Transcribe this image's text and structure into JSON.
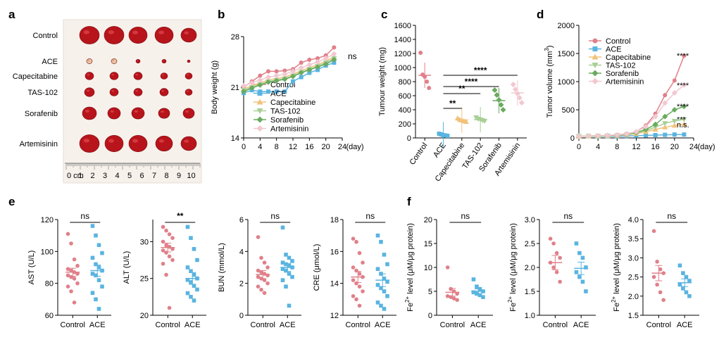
{
  "panel_labels": {
    "a": "a",
    "b": "b",
    "c": "c",
    "d": "d",
    "e": "e",
    "f": "f"
  },
  "colors": {
    "Control": "#e0808a",
    "ACE": "#5ab4e0",
    "Capecitabine": "#f2c27a",
    "TAS-102": "#a8cf96",
    "Sorafenib": "#6aaa5e",
    "Artemisinin": "#f2c8d0"
  },
  "groups": [
    "Control",
    "ACE",
    "Capecitabine",
    "TAS-102",
    "Sorafenib",
    "Artemisinin"
  ],
  "photo": {
    "rows": [
      "Control",
      "ACE",
      "Capecitabine",
      "TAS-102",
      "Sorafenib",
      "Artemisinin"
    ],
    "ruler_unit": "0 cm",
    "ruler_numbers": [
      "1",
      "2",
      "3",
      "4",
      "5",
      "6",
      "7",
      "8",
      "9",
      "10"
    ]
  },
  "chart_data": [
    {
      "id": "b",
      "type": "line",
      "title": "",
      "xlabel": "(day)",
      "ylabel": "Body weight (g)",
      "x": [
        0,
        2,
        4,
        6,
        8,
        10,
        12,
        14,
        16,
        18,
        20,
        22
      ],
      "xticks": [
        "0",
        "4",
        "8",
        "12",
        "16",
        "20",
        "24"
      ],
      "yticks": [
        "14",
        "21",
        "28"
      ],
      "xlim": [
        0,
        24
      ],
      "ylim": [
        14,
        28
      ],
      "annotation": "ns",
      "series": [
        {
          "name": "Control",
          "values": [
            21,
            21.8,
            22.6,
            23.2,
            23.2,
            23.3,
            23.5,
            24.4,
            24.8,
            25,
            25.4,
            26.5
          ]
        },
        {
          "name": "ACE",
          "values": [
            20.2,
            20.6,
            20.4,
            20.4,
            20.4,
            20.4,
            21.8,
            22.4,
            23,
            23.4,
            24,
            24.4
          ]
        },
        {
          "name": "Capecitabine",
          "values": [
            20.8,
            21.2,
            21.6,
            22,
            22.2,
            22.4,
            22.8,
            23.3,
            23.7,
            24.1,
            24.6,
            25.2
          ]
        },
        {
          "name": "TAS-102",
          "values": [
            20.6,
            21,
            21.4,
            21.8,
            22,
            22.2,
            22.6,
            23.1,
            23.5,
            23.9,
            24.4,
            25
          ]
        },
        {
          "name": "Sorafenib",
          "values": [
            20.4,
            20.9,
            21.3,
            21.7,
            21.9,
            22.1,
            22.5,
            23,
            23.4,
            23.8,
            24.2,
            24.8
          ]
        },
        {
          "name": "Artemisinin",
          "values": [
            21.2,
            21.6,
            22,
            22.4,
            22.6,
            22.8,
            23.2,
            23.7,
            24.1,
            24.5,
            25,
            25.6
          ]
        }
      ]
    },
    {
      "id": "c",
      "type": "scatter",
      "title": "",
      "ylabel": "Tumour weight (mg)",
      "categories": [
        "Control",
        "ACE",
        "Capecitabine",
        "TAS-102",
        "Sorafenib",
        "Artemisinin"
      ],
      "yticks": [
        "0",
        "200",
        "400",
        "600",
        "800",
        "1000",
        "1200",
        "1400",
        "1600"
      ],
      "ylim": [
        0,
        1600
      ],
      "series": [
        {
          "name": "Control",
          "values": [
            1210,
            900,
            870,
            800,
            710
          ],
          "mean": 890
        },
        {
          "name": "ACE",
          "values": [
            60,
            50,
            40,
            35,
            30
          ],
          "mean": 45
        },
        {
          "name": "Capecitabine",
          "values": [
            280,
            260,
            250,
            240,
            230
          ],
          "mean": 255
        },
        {
          "name": "TAS-102",
          "values": [
            290,
            270,
            260,
            250,
            240
          ],
          "mean": 260
        },
        {
          "name": "Sorafenib",
          "values": [
            680,
            610,
            540,
            470,
            400
          ],
          "mean": 530
        },
        {
          "name": "Artemisinin",
          "values": [
            760,
            690,
            630,
            570,
            500
          ],
          "mean": 640
        }
      ],
      "significance": [
        "**",
        "**",
        "****",
        "****"
      ]
    },
    {
      "id": "d",
      "type": "line",
      "title": "",
      "xlabel": "(day)",
      "ylabel": "Tumor volume (mm",
      "ylabel_sup": "3",
      "ylabel_end": ")",
      "x": [
        0,
        2,
        4,
        6,
        8,
        10,
        12,
        14,
        16,
        18,
        20,
        22
      ],
      "xticks": [
        "0",
        "4",
        "8",
        "12",
        "16",
        "20",
        "24"
      ],
      "yticks": [
        "0",
        "500",
        "1000",
        "1500",
        "2000"
      ],
      "xlim": [
        0,
        24
      ],
      "ylim": [
        0,
        2000
      ],
      "series": [
        {
          "name": "Control",
          "values": [
            30,
            35,
            40,
            45,
            55,
            75,
            110,
            220,
            430,
            760,
            1020,
            1460
          ],
          "label": "****"
        },
        {
          "name": "ACE",
          "values": [
            30,
            30,
            30,
            30,
            30,
            35,
            40,
            45,
            50,
            55,
            60,
            60
          ],
          "label": ""
        },
        {
          "name": "Capecitabine",
          "values": [
            30,
            32,
            35,
            38,
            42,
            55,
            75,
            110,
            150,
            190,
            220,
            240
          ],
          "label": "n.s."
        },
        {
          "name": "TAS-102",
          "values": [
            30,
            33,
            36,
            40,
            45,
            60,
            85,
            130,
            190,
            260,
            300,
            330
          ],
          "label": "***"
        },
        {
          "name": "Sorafenib",
          "values": [
            30,
            34,
            38,
            42,
            48,
            65,
            95,
            150,
            240,
            380,
            500,
            560
          ],
          "label": "****"
        },
        {
          "name": "Artemisinin",
          "values": [
            30,
            35,
            40,
            45,
            52,
            70,
            110,
            200,
            380,
            620,
            800,
            940
          ],
          "label": "****"
        }
      ]
    },
    {
      "id": "e1",
      "type": "scatter",
      "ylabel": "AST (U/L)",
      "categories": [
        "Control",
        "ACE"
      ],
      "yticks": [
        "60",
        "80",
        "100",
        "120"
      ],
      "ylim": [
        60,
        120
      ],
      "annotation": "ns",
      "series": [
        {
          "name": "Control",
          "values": [
            111,
            105,
            95,
            91,
            89,
            88,
            87,
            86,
            85,
            84,
            83,
            80,
            78,
            75,
            68
          ],
          "mean": 87,
          "sem": 2.5
        },
        {
          "name": "ACE",
          "values": [
            116,
            110,
            104,
            99,
            96,
            92,
            90,
            88,
            86,
            85,
            82,
            78,
            74,
            70,
            64
          ],
          "mean": 88,
          "sem": 3.5
        }
      ]
    },
    {
      "id": "e2",
      "type": "scatter",
      "ylabel": "ALT (U/L)",
      "categories": [
        "Control",
        "ACE"
      ],
      "yticks": [
        "20",
        "25",
        "30"
      ],
      "ylim": [
        20,
        33
      ],
      "annotation": "**",
      "series": [
        {
          "name": "Control",
          "values": [
            32,
            31.5,
            31,
            30.5,
            30,
            29.5,
            29.3,
            29,
            28.8,
            28.5,
            28,
            27.5,
            27,
            25.5,
            21
          ],
          "mean": 29.2,
          "sem": 0.6
        },
        {
          "name": "ACE",
          "values": [
            32,
            30.5,
            29,
            27.5,
            26.5,
            26,
            25.5,
            25,
            24.8,
            24.5,
            24,
            23.5,
            23,
            22.5,
            22
          ],
          "mean": 25,
          "sem": 0.8
        }
      ]
    },
    {
      "id": "e3",
      "type": "scatter",
      "ylabel": "BUN (mmol/L)",
      "categories": [
        "Control",
        "ACE"
      ],
      "yticks": [
        "0",
        "2",
        "4",
        "6"
      ],
      "ylim": [
        0,
        6
      ],
      "annotation": "ns",
      "series": [
        {
          "name": "Control",
          "values": [
            4.9,
            3.6,
            3.3,
            3.0,
            2.8,
            2.7,
            2.6,
            2.5,
            2.4,
            2.3,
            2.2,
            2.0,
            1.8,
            1.6,
            1.4
          ],
          "mean": 2.55,
          "sem": 0.25
        },
        {
          "name": "ACE",
          "values": [
            5.5,
            3.8,
            3.6,
            3.4,
            3.3,
            3.2,
            3.1,
            3.0,
            2.9,
            2.8,
            2.6,
            2.4,
            2.2,
            1.8,
            0.6
          ],
          "mean": 3.0,
          "sem": 0.25
        }
      ]
    },
    {
      "id": "e4",
      "type": "scatter",
      "ylabel": "CRE (μmol/L)",
      "categories": [
        "Control",
        "ACE"
      ],
      "yticks": [
        "12",
        "14",
        "16",
        "18"
      ],
      "ylim": [
        12,
        18
      ],
      "annotation": "ns",
      "series": [
        {
          "name": "Control",
          "values": [
            16.8,
            16.6,
            15.9,
            15.3,
            15.0,
            14.8,
            14.6,
            14.4,
            14.2,
            14.0,
            13.8,
            13.5,
            13.2,
            13.0,
            12.6
          ],
          "mean": 14.4,
          "sem": 0.35
        },
        {
          "name": "ACE",
          "values": [
            17.0,
            16.6,
            15.8,
            15.2,
            14.9,
            14.6,
            14.3,
            14.1,
            13.9,
            13.7,
            13.5,
            13.2,
            12.8,
            12.6,
            12.4
          ],
          "mean": 14.2,
          "sem": 0.4
        }
      ]
    },
    {
      "id": "f1",
      "type": "scatter",
      "ylabel": "Fe",
      "ylabel_sup": "2+",
      "ylabel_end": " level (μM/μg protein)",
      "categories": [
        "Control",
        "ACE"
      ],
      "yticks": [
        "0",
        "5",
        "10",
        "15",
        "20"
      ],
      "ylim": [
        0,
        20
      ],
      "annotation": "ns",
      "series": [
        {
          "name": "Control",
          "values": [
            10,
            5.5,
            5,
            4.5,
            4,
            3.8,
            3.5,
            3.2
          ],
          "mean": 4.8,
          "sem": 0.8
        },
        {
          "name": "ACE",
          "values": [
            7.5,
            6,
            5.5,
            5,
            4.8,
            4.5,
            4.2,
            3.8
          ],
          "mean": 5,
          "sem": 0.5
        }
      ]
    },
    {
      "id": "f2",
      "type": "scatter",
      "ylabel": "Fe",
      "ylabel_sup": "2+",
      "ylabel_end": " level (μM/μg protein)",
      "categories": [
        "Control",
        "ACE"
      ],
      "yticks": [
        "1.0",
        "1.5",
        "2.0",
        "2.5",
        "3.0"
      ],
      "ylim": [
        1.0,
        3.0
      ],
      "annotation": "ns",
      "series": [
        {
          "name": "Control",
          "values": [
            2.6,
            2.5,
            2.3,
            2.2,
            2.1,
            2.0,
            1.9,
            1.7
          ],
          "mean": 2.1,
          "sem": 0.15
        },
        {
          "name": "ACE",
          "values": [
            2.5,
            2.3,
            2.2,
            2.0,
            1.9,
            1.8,
            1.7,
            1.5
          ],
          "mean": 1.98,
          "sem": 0.13
        }
      ]
    },
    {
      "id": "f3",
      "type": "scatter",
      "ylabel": "Fe",
      "ylabel_sup": "2+",
      "ylabel_end": " level (μM/μg protein)",
      "categories": [
        "Control",
        "ACE"
      ],
      "yticks": [
        "1.5",
        "2.0",
        "2.5",
        "3.0",
        "3.5",
        "4.0"
      ],
      "ylim": [
        1.5,
        4.0
      ],
      "annotation": "ns",
      "series": [
        {
          "name": "Control",
          "values": [
            3.7,
            2.9,
            2.7,
            2.6,
            2.5,
            2.3,
            2.1,
            1.9
          ],
          "mean": 2.6,
          "sem": 0.2
        },
        {
          "name": "ACE",
          "values": [
            2.8,
            2.6,
            2.5,
            2.4,
            2.3,
            2.2,
            2.1,
            2.0
          ],
          "mean": 2.35,
          "sem": 0.1
        }
      ]
    }
  ]
}
